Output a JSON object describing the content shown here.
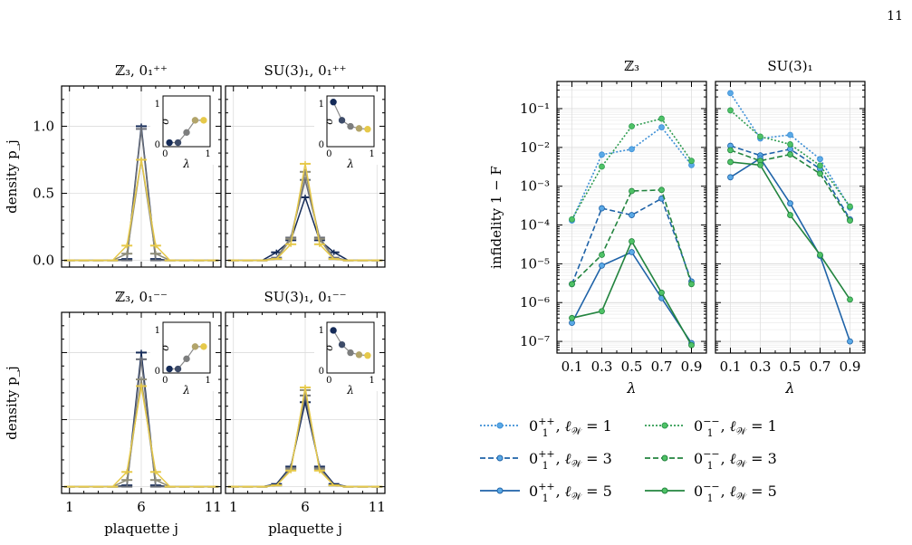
{
  "page_number": "11",
  "chart_data": [
    {
      "type": "line",
      "panel": "top-left",
      "title": "ℤ₃, 0₁⁺⁺",
      "xlabel": "",
      "ylabel": "density p_j",
      "xlim": [
        1,
        11
      ],
      "ylim": [
        -0.05,
        1.3
      ],
      "yticks": [
        0.0,
        0.5,
        1.0
      ],
      "x": [
        1,
        2,
        3,
        4,
        5,
        6,
        7,
        8,
        9,
        10,
        11
      ],
      "series": [
        {
          "values": [
            0,
            0,
            0,
            0,
            0.01,
            1.0,
            0.01,
            0,
            0,
            0,
            0
          ],
          "color": "#152b58"
        },
        {
          "values": [
            0,
            0,
            0,
            0,
            0.0,
            0.98,
            0.0,
            0,
            0,
            0,
            0
          ],
          "color": "#6b6f78"
        },
        {
          "values": [
            0,
            0,
            0,
            0,
            0.05,
            0.75,
            0.05,
            0,
            0,
            0,
            0
          ],
          "color": "#8e8c79"
        },
        {
          "values": [
            0,
            0,
            0,
            0,
            0.11,
            0.75,
            0.11,
            0,
            0,
            0,
            0
          ],
          "color": "#e6c94a"
        }
      ],
      "inset": {
        "xlabel": "λ",
        "ylabel": "σ",
        "xticks": [
          "0",
          "1"
        ],
        "yticks": [
          "0",
          "1"
        ],
        "x": [
          0.1,
          0.3,
          0.5,
          0.7,
          0.9
        ],
        "y": [
          0.05,
          0.05,
          0.3,
          0.6,
          0.6
        ],
        "colors": [
          "#152b58",
          "#3e4c69",
          "#7d7e7e",
          "#b2a46a",
          "#e6c94a"
        ]
      }
    },
    {
      "type": "line",
      "panel": "top-middle",
      "title": "SU(3)₁, 0₁⁺⁺",
      "xlabel": "",
      "ylabel": "",
      "xlim": [
        1,
        11
      ],
      "ylim": [
        -0.05,
        1.3
      ],
      "x": [
        1,
        2,
        3,
        4,
        5,
        6,
        7,
        8,
        9,
        10,
        11
      ],
      "series": [
        {
          "values": [
            0,
            0,
            0,
            0.06,
            0.15,
            0.47,
            0.15,
            0.06,
            0,
            0,
            0
          ],
          "color": "#152b58"
        },
        {
          "values": [
            0,
            0,
            0,
            0.02,
            0.17,
            0.6,
            0.17,
            0.02,
            0,
            0,
            0
          ],
          "color": "#6b6f78"
        },
        {
          "values": [
            0,
            0,
            0,
            0.01,
            0.16,
            0.66,
            0.16,
            0.01,
            0,
            0,
            0
          ],
          "color": "#8e8c79"
        },
        {
          "values": [
            0,
            0,
            0,
            0.01,
            0.12,
            0.72,
            0.12,
            0.01,
            0,
            0,
            0
          ],
          "color": "#e6c94a"
        }
      ],
      "inset": {
        "xlabel": "λ",
        "ylabel": "σ",
        "xticks": [
          "0",
          "1"
        ],
        "yticks": [
          "0",
          "1"
        ],
        "x": [
          0.1,
          0.3,
          0.5,
          0.7,
          0.9
        ],
        "y": [
          1.05,
          0.6,
          0.45,
          0.4,
          0.38
        ],
        "colors": [
          "#152b58",
          "#3e4c69",
          "#7d7e7e",
          "#b2a46a",
          "#e6c94a"
        ]
      }
    },
    {
      "type": "line",
      "panel": "bottom-left",
      "title": "ℤ₃, 0₁⁻⁻",
      "xlabel": "plaquette j",
      "ylabel": "density p_j",
      "xlim": [
        1,
        11
      ],
      "ylim": [
        -0.05,
        1.3
      ],
      "xticks": [
        1,
        6,
        11
      ],
      "x": [
        1,
        2,
        3,
        4,
        5,
        6,
        7,
        8,
        9,
        10,
        11
      ],
      "series": [
        {
          "values": [
            0,
            0,
            0,
            0,
            0.01,
            1.0,
            0.01,
            0,
            0,
            0,
            0
          ],
          "color": "#152b58"
        },
        {
          "values": [
            0,
            0,
            0,
            0,
            0.0,
            0.95,
            0.0,
            0,
            0,
            0,
            0
          ],
          "color": "#6b6f78"
        },
        {
          "values": [
            0,
            0,
            0,
            0,
            0.05,
            0.8,
            0.05,
            0,
            0,
            0,
            0
          ],
          "color": "#8e8c79"
        },
        {
          "values": [
            0,
            0,
            0,
            0,
            0.11,
            0.75,
            0.11,
            0,
            0,
            0,
            0
          ],
          "color": "#e6c94a"
        }
      ],
      "inset": {
        "xlabel": "λ",
        "ylabel": "σ",
        "xticks": [
          "0",
          "1"
        ],
        "yticks": [
          "0",
          "1"
        ],
        "x": [
          0.1,
          0.3,
          0.5,
          0.7,
          0.9
        ],
        "y": [
          0.05,
          0.05,
          0.3,
          0.6,
          0.6
        ],
        "colors": [
          "#152b58",
          "#3e4c69",
          "#7d7e7e",
          "#b2a46a",
          "#e6c94a"
        ]
      }
    },
    {
      "type": "line",
      "panel": "bottom-middle",
      "title": "SU(3)₁, 0₁⁻⁻",
      "xlabel": "plaquette j",
      "ylabel": "",
      "xlim": [
        1,
        11
      ],
      "ylim": [
        -0.05,
        1.3
      ],
      "xticks": [
        1,
        6,
        11
      ],
      "x": [
        1,
        2,
        3,
        4,
        5,
        6,
        7,
        8,
        9,
        10,
        11
      ],
      "series": [
        {
          "values": [
            0,
            0,
            0,
            0.02,
            0.15,
            0.63,
            0.15,
            0.02,
            0,
            0,
            0
          ],
          "color": "#152b58"
        },
        {
          "values": [
            0,
            0,
            0,
            0.01,
            0.14,
            0.68,
            0.14,
            0.01,
            0,
            0,
            0
          ],
          "color": "#6b6f78"
        },
        {
          "values": [
            0,
            0,
            0,
            0.01,
            0.13,
            0.72,
            0.13,
            0.01,
            0,
            0,
            0
          ],
          "color": "#8e8c79"
        },
        {
          "values": [
            0,
            0,
            0,
            0.01,
            0.12,
            0.74,
            0.12,
            0.01,
            0,
            0,
            0
          ],
          "color": "#e6c94a"
        }
      ],
      "inset": {
        "xlabel": "λ",
        "ylabel": "σ",
        "xticks": [
          "0",
          "1"
        ],
        "yticks": [
          "0",
          "1"
        ],
        "x": [
          0.1,
          0.3,
          0.5,
          0.7,
          0.9
        ],
        "y": [
          1.0,
          0.65,
          0.45,
          0.4,
          0.38
        ],
        "colors": [
          "#152b58",
          "#3e4c69",
          "#7d7e7e",
          "#b2a46a",
          "#e6c94a"
        ]
      }
    },
    {
      "type": "line",
      "panel": "right-Z3",
      "title": "ℤ₃",
      "xlabel": "λ",
      "ylabel": "infidelity 1 − F",
      "log_y": true,
      "ylim": [
        5e-08,
        0.5
      ],
      "yticks": [
        "10⁻¹",
        "10⁻²",
        "10⁻³",
        "10⁻⁴",
        "10⁻⁵",
        "10⁻⁶",
        "10⁻⁷"
      ],
      "xticks": [
        "0.1",
        "0.3",
        "0.5",
        "0.7",
        "0.9"
      ],
      "x": [
        0.1,
        0.3,
        0.5,
        0.7,
        0.9
      ],
      "series": [
        {
          "name": "0₁⁺⁺, ℓ_W = 1",
          "style": "dotted",
          "color": "#3c8fd6",
          "values": [
            0.00013,
            0.0065,
            0.009,
            0.033,
            0.0035
          ]
        },
        {
          "name": "0₁⁺⁺, ℓ_W = 3",
          "style": "dashed",
          "color": "#1f63a8",
          "values": [
            3e-06,
            0.00027,
            0.00018,
            0.00048,
            3.5e-06
          ]
        },
        {
          "name": "0₁⁺⁺, ℓ_W = 5",
          "style": "solid",
          "color": "#1f63a8",
          "values": [
            3e-07,
            9e-06,
            2e-05,
            1.3e-06,
            9e-08
          ]
        },
        {
          "name": "0₁⁻⁻, ℓ_W = 1",
          "style": "dotted",
          "color": "#2e9b50",
          "values": [
            0.00014,
            0.0032,
            0.035,
            0.055,
            0.0045
          ]
        },
        {
          "name": "0₁⁻⁻, ℓ_W = 3",
          "style": "dashed",
          "color": "#23843f",
          "values": [
            3e-06,
            1.7e-05,
            0.00075,
            0.0008,
            3e-06
          ]
        },
        {
          "name": "0₁⁻⁻, ℓ_W = 5",
          "style": "solid",
          "color": "#23843f",
          "values": [
            4e-07,
            6e-07,
            3.8e-05,
            1.8e-06,
            8e-08
          ]
        }
      ]
    },
    {
      "type": "line",
      "panel": "right-SU3",
      "title": "SU(3)₁",
      "xlabel": "λ",
      "ylabel": "",
      "log_y": true,
      "ylim": [
        5e-08,
        0.5
      ],
      "xticks": [
        "0.1",
        "0.3",
        "0.5",
        "0.7",
        "0.9"
      ],
      "x": [
        0.1,
        0.3,
        0.5,
        0.7,
        0.9
      ],
      "series": [
        {
          "name": "0₁⁺⁺, ℓ_W = 1",
          "style": "dotted",
          "color": "#3c8fd6",
          "values": [
            0.25,
            0.017,
            0.021,
            0.005,
            0.00028
          ]
        },
        {
          "name": "0₁⁺⁺, ℓ_W = 3",
          "style": "dashed",
          "color": "#1f63a8",
          "values": [
            0.011,
            0.0062,
            0.009,
            0.0028,
            0.00014
          ]
        },
        {
          "name": "0₁⁺⁺, ℓ_W = 5",
          "style": "solid",
          "color": "#1f63a8",
          "values": [
            0.0017,
            0.0052,
            0.00036,
            1.6e-05,
            1e-07
          ]
        },
        {
          "name": "0₁⁻⁻, ℓ_W = 1",
          "style": "dotted",
          "color": "#2e9b50",
          "values": [
            0.09,
            0.019,
            0.012,
            0.0034,
            0.0003
          ]
        },
        {
          "name": "0₁⁻⁻, ℓ_W = 3",
          "style": "dashed",
          "color": "#23843f",
          "values": [
            0.0085,
            0.0045,
            0.0066,
            0.0021,
            0.00013
          ]
        },
        {
          "name": "0₁⁻⁻, ℓ_W = 5",
          "style": "solid",
          "color": "#23843f",
          "values": [
            0.0042,
            0.0035,
            0.00018,
            1.7e-05,
            1.2e-06
          ]
        }
      ]
    }
  ],
  "legend": {
    "placement": "bottom",
    "entries": [
      {
        "base": "0",
        "sub": "1",
        "sup": "++",
        "ell": "1",
        "style": "dotted",
        "color": "#3c8fd6"
      },
      {
        "base": "0",
        "sub": "1",
        "sup": "−−",
        "ell": "1",
        "style": "dotted",
        "color": "#2e9b50"
      },
      {
        "base": "0",
        "sub": "1",
        "sup": "++",
        "ell": "3",
        "style": "dashed",
        "color": "#1f63a8"
      },
      {
        "base": "0",
        "sub": "1",
        "sup": "−−",
        "ell": "3",
        "style": "dashed",
        "color": "#23843f"
      },
      {
        "base": "0",
        "sub": "1",
        "sup": "++",
        "ell": "5",
        "style": "solid",
        "color": "#1f63a8"
      },
      {
        "base": "0",
        "sub": "1",
        "sup": "−−",
        "ell": "5",
        "style": "solid",
        "color": "#23843f"
      }
    ]
  }
}
